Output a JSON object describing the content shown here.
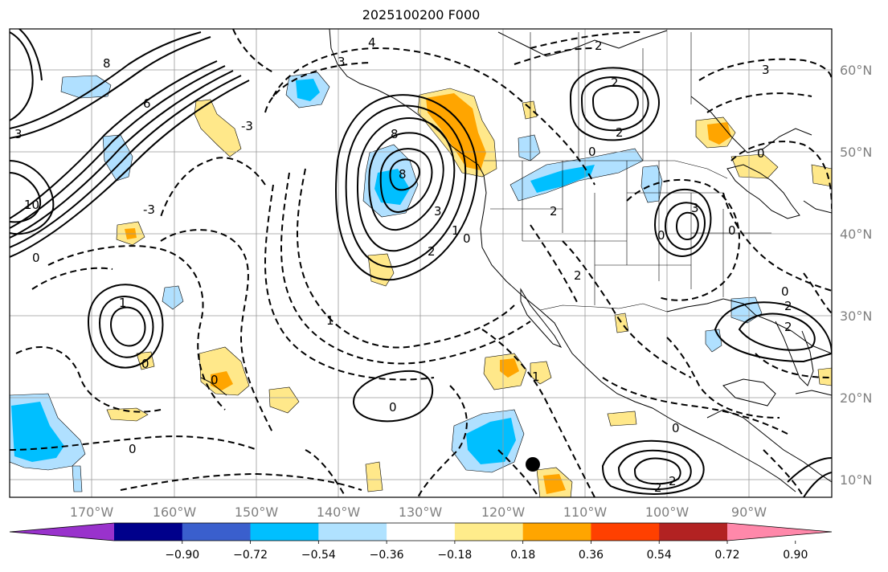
{
  "title": "2025100200 F000",
  "map": {
    "lat_labels": [
      {
        "text": "60°N",
        "lat": 60
      },
      {
        "text": "50°N",
        "lat": 50
      },
      {
        "text": "40°N",
        "lat": 40
      },
      {
        "text": "30°N",
        "lat": 30
      },
      {
        "text": "20°N",
        "lat": 20
      },
      {
        "text": "10°N",
        "lat": 10
      }
    ],
    "lon_labels": [
      {
        "text": "170°W",
        "lon": -170
      },
      {
        "text": "160°W",
        "lon": -160
      },
      {
        "text": "150°W",
        "lon": -150
      },
      {
        "text": "140°W",
        "lon": -140
      },
      {
        "text": "130°W",
        "lon": -130
      },
      {
        "text": "120°W",
        "lon": -120
      },
      {
        "text": "110°W",
        "lon": -110
      },
      {
        "text": "100°W",
        "lon": -100
      },
      {
        "text": "90°W",
        "lon": -90
      }
    ],
    "contour_labels": [
      "4",
      "2",
      "3",
      "6",
      "8",
      "10",
      "1",
      "0",
      "-3",
      "-2"
    ],
    "colors": {
      "strong_neg": "#00bfff",
      "weak_neg": "#b0e0ff",
      "weak_pos": "#ffe88a",
      "mid_pos": "#ffa500"
    }
  },
  "colorbar": {
    "colors": [
      "#9932cc",
      "#00008b",
      "#3a5fcd",
      "#00bfff",
      "#b0e2ff",
      "#ffffff",
      "#ffec8b",
      "#ffa500",
      "#ff4000",
      "#b22222",
      "#ff88aa"
    ],
    "tick_labels": [
      "−0.90",
      "−0.72",
      "−0.54",
      "−0.36",
      "−0.18",
      "0.18",
      "0.36",
      "0.54",
      "0.72",
      "0.90"
    ]
  }
}
